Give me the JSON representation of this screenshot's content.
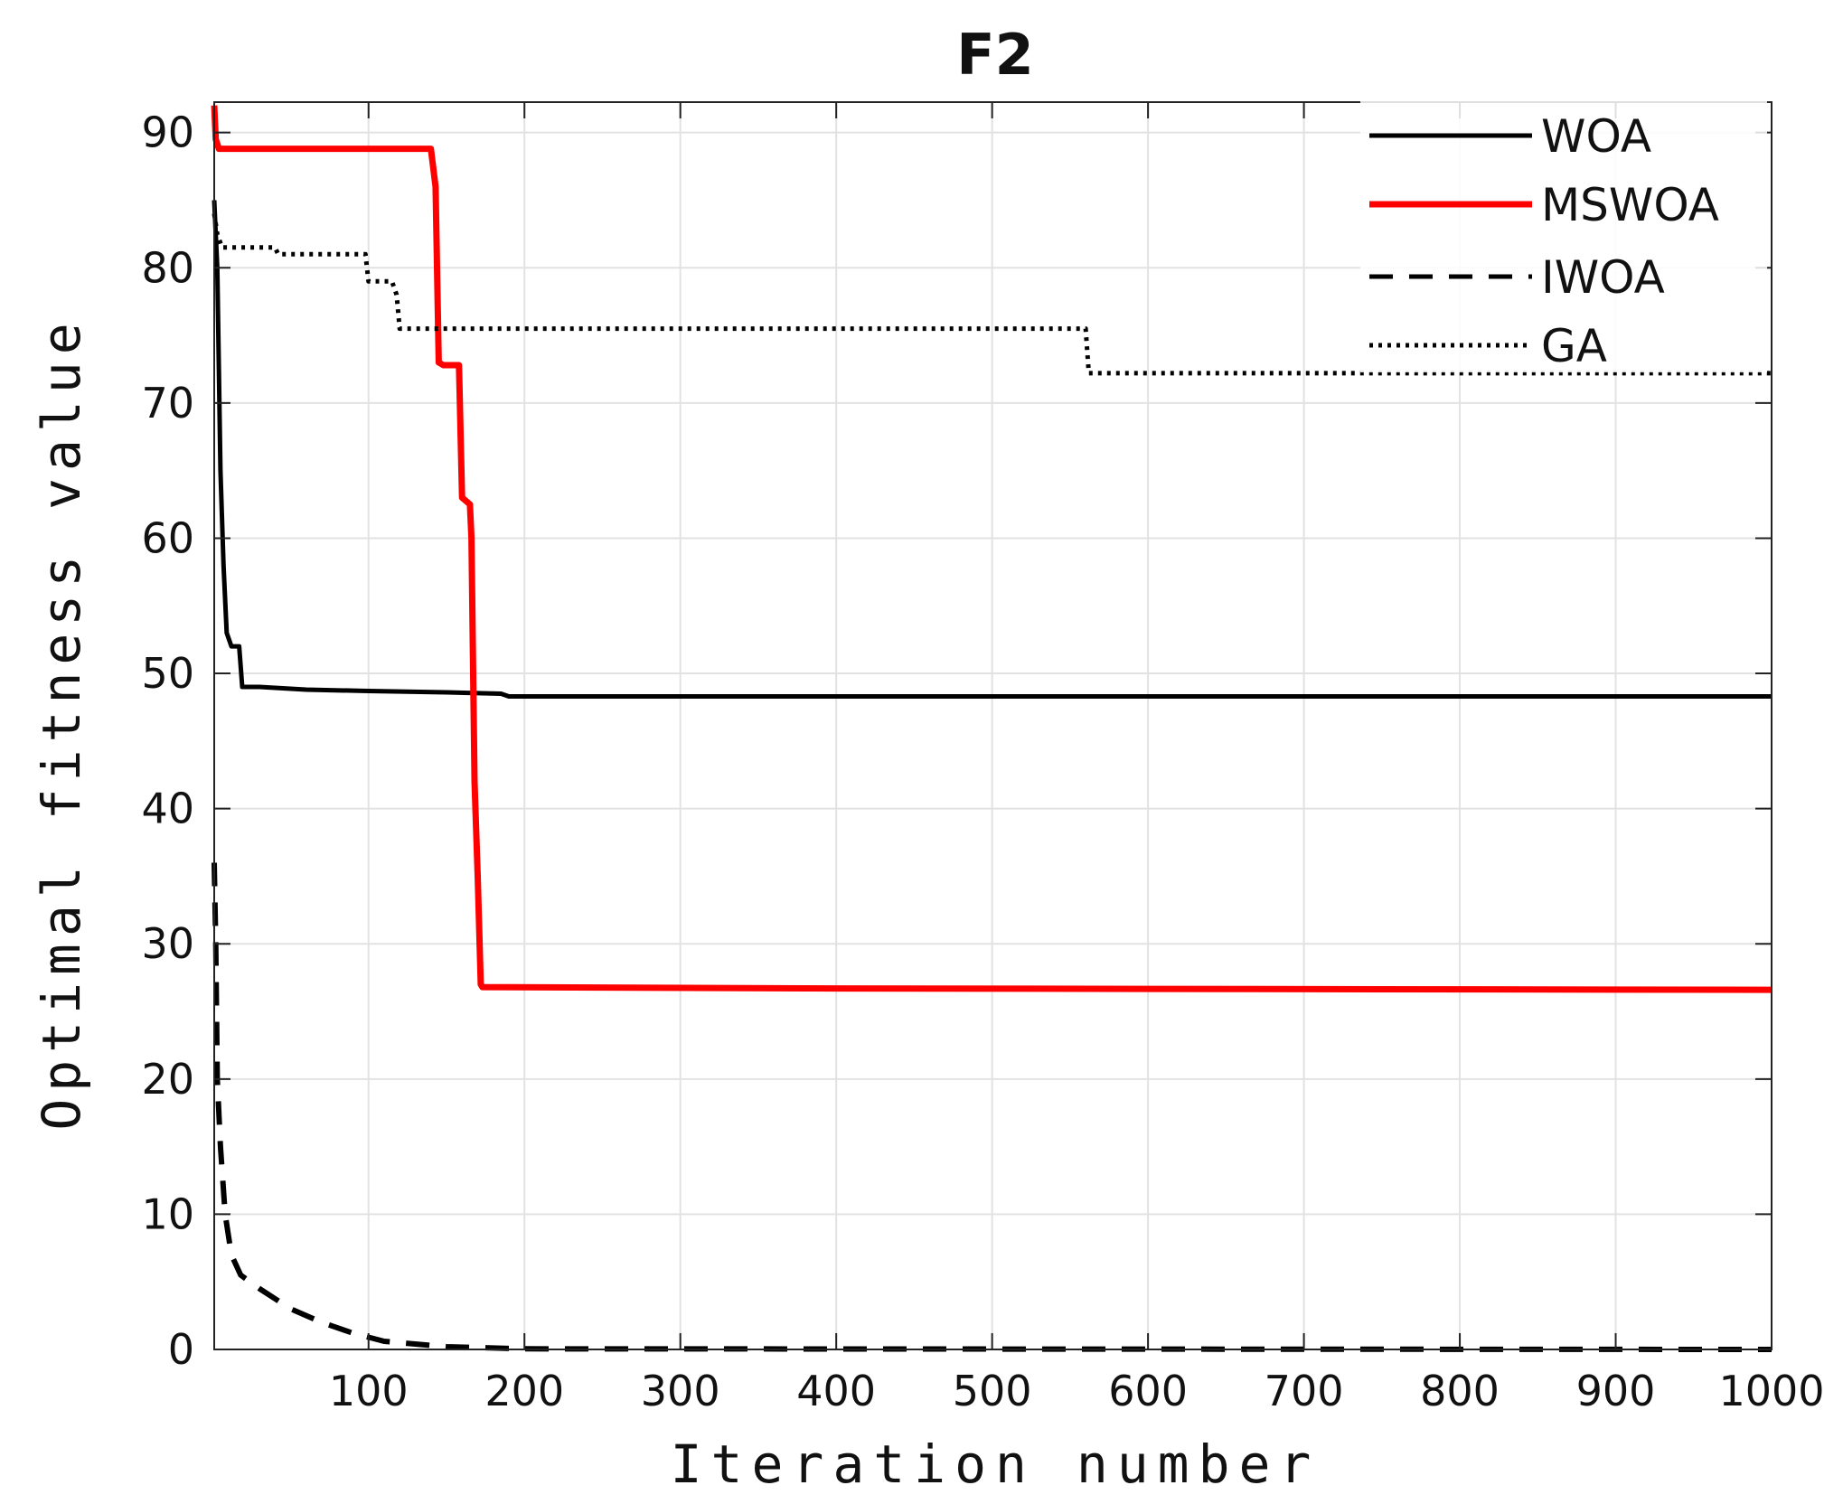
{
  "chart_data": {
    "type": "line",
    "title": "F2",
    "xlabel": "Iteration number",
    "ylabel": "Optimal fitness value",
    "xlim": [
      1,
      1000
    ],
    "ylim": [
      0,
      90
    ],
    "grid": true,
    "legend_position": "top-right",
    "x_ticks": [
      100,
      200,
      300,
      400,
      500,
      600,
      700,
      800,
      900,
      1000
    ],
    "x_tick_labels": [
      "100",
      "200",
      "300",
      "400",
      "500",
      "600",
      "700",
      "800",
      "900",
      "1000"
    ],
    "y_ticks": [
      0,
      10,
      20,
      30,
      40,
      50,
      60,
      70,
      80,
      90
    ],
    "y_tick_labels": [
      "0",
      "10",
      "20",
      "30",
      "40",
      "50",
      "60",
      "70",
      "80",
      "90"
    ],
    "series": [
      {
        "name": "WOA",
        "color": "#000000",
        "style": "solid",
        "points": [
          [
            1,
            85
          ],
          [
            3,
            80
          ],
          [
            5,
            65
          ],
          [
            7,
            58
          ],
          [
            9,
            53
          ],
          [
            12,
            52
          ],
          [
            17,
            52
          ],
          [
            19,
            49
          ],
          [
            30,
            49
          ],
          [
            60,
            48.8
          ],
          [
            100,
            48.7
          ],
          [
            150,
            48.6
          ],
          [
            185,
            48.5
          ],
          [
            190,
            48.3
          ],
          [
            300,
            48.3
          ],
          [
            500,
            48.3
          ],
          [
            1000,
            48.3
          ]
        ]
      },
      {
        "name": "MSWOA",
        "color": "#ff0000",
        "style": "solid",
        "points": [
          [
            1,
            92
          ],
          [
            2,
            89.5
          ],
          [
            4,
            88.8
          ],
          [
            140,
            88.8
          ],
          [
            143,
            86
          ],
          [
            145,
            73
          ],
          [
            148,
            72.8
          ],
          [
            158,
            72.8
          ],
          [
            160,
            63
          ],
          [
            165,
            62.5
          ],
          [
            166,
            60
          ],
          [
            168,
            42
          ],
          [
            170,
            35
          ],
          [
            172,
            27
          ],
          [
            173,
            26.8
          ],
          [
            400,
            26.7
          ],
          [
            1000,
            26.6
          ]
        ]
      },
      {
        "name": "IWOA",
        "color": "#000000",
        "style": "dashed",
        "points": [
          [
            1,
            36
          ],
          [
            2,
            30
          ],
          [
            3,
            20
          ],
          [
            5,
            15
          ],
          [
            8,
            10
          ],
          [
            12,
            7
          ],
          [
            18,
            5.5
          ],
          [
            30,
            4.5
          ],
          [
            50,
            3
          ],
          [
            70,
            2
          ],
          [
            90,
            1.2
          ],
          [
            110,
            0.6
          ],
          [
            150,
            0.2
          ],
          [
            200,
            0.05
          ],
          [
            1000,
            0
          ]
        ]
      },
      {
        "name": "GA",
        "color": "#000000",
        "style": "dotted",
        "points": [
          [
            1,
            84
          ],
          [
            3,
            82.5
          ],
          [
            6,
            81.5
          ],
          [
            40,
            81.5
          ],
          [
            42,
            81
          ],
          [
            98,
            81
          ],
          [
            100,
            79
          ],
          [
            115,
            79
          ],
          [
            118,
            78
          ],
          [
            120,
            75.5
          ],
          [
            560,
            75.5
          ],
          [
            562,
            72.2
          ],
          [
            1000,
            72.2
          ]
        ]
      }
    ]
  }
}
